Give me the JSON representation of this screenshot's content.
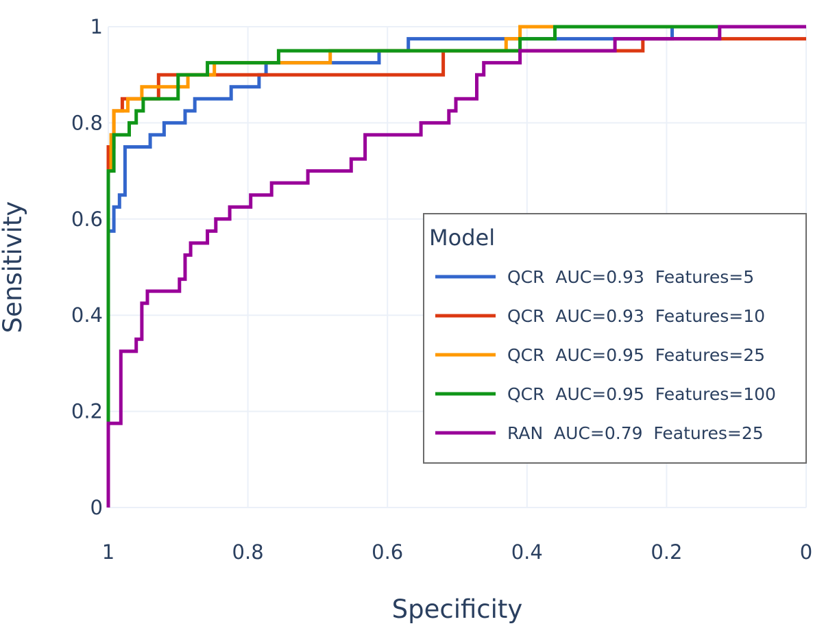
{
  "chart_data": {
    "type": "line",
    "xlabel": "Specificity",
    "ylabel": "Sensitivity",
    "xlim": [
      1,
      0
    ],
    "ylim": [
      0,
      1
    ],
    "x_reversed": true,
    "grid": true,
    "x_ticks": [
      1,
      0.8,
      0.6,
      0.4,
      0.2,
      0
    ],
    "x_tick_labels": [
      "1",
      "0.8",
      "0.6",
      "0.4",
      "0.2",
      "0"
    ],
    "y_ticks": [
      0,
      0.2,
      0.4,
      0.6,
      0.8,
      1
    ],
    "y_tick_labels": [
      "0",
      "0.2",
      "0.4",
      "0.6",
      "0.8",
      "1"
    ],
    "legend": {
      "title": "Model",
      "placement": "center-right"
    },
    "series": [
      {
        "name": "QCR  AUC=0.93  Features=5",
        "color": "#3366cc",
        "x": [
          1,
          1,
          0.992,
          0.992,
          0.984,
          0.984,
          0.976,
          0.976,
          0.968,
          0.968,
          0.94,
          0.94,
          0.92,
          0.92,
          0.89,
          0.89,
          0.876,
          0.876,
          0.824,
          0.824,
          0.784,
          0.784,
          0.774,
          0.774,
          0.612,
          0.612,
          0.57,
          0.57,
          0.192,
          0.192,
          0
        ],
        "y": [
          0,
          0.575,
          0.575,
          0.625,
          0.625,
          0.65,
          0.65,
          0.75,
          0.75,
          0.75,
          0.75,
          0.775,
          0.775,
          0.8,
          0.8,
          0.825,
          0.825,
          0.85,
          0.85,
          0.875,
          0.875,
          0.9,
          0.9,
          0.925,
          0.925,
          0.95,
          0.95,
          0.975,
          0.975,
          1,
          1
        ]
      },
      {
        "name": "QCR  AUC=0.93  Features=10",
        "color": "#dc3912",
        "x": [
          1,
          1,
          0.992,
          0.992,
          0.98,
          0.98,
          0.928,
          0.928,
          0.52,
          0.52,
          0.234,
          0.234,
          0
        ],
        "y": [
          0,
          0.75,
          0.75,
          0.825,
          0.825,
          0.85,
          0.85,
          0.9,
          0.9,
          0.95,
          0.95,
          0.975,
          0.975
        ]
      },
      {
        "name": "QCR  AUC=0.95  Features=25",
        "color": "#ff9900",
        "x": [
          1,
          1,
          0.996,
          0.996,
          0.992,
          0.992,
          0.972,
          0.972,
          0.952,
          0.952,
          0.886,
          0.886,
          0.848,
          0.848,
          0.682,
          0.682,
          0.43,
          0.43,
          0.41,
          0.41,
          0.36
        ],
        "y": [
          0,
          0.7,
          0.7,
          0.775,
          0.775,
          0.825,
          0.825,
          0.85,
          0.85,
          0.875,
          0.875,
          0.9,
          0.9,
          0.925,
          0.925,
          0.95,
          0.95,
          0.975,
          0.975,
          1,
          1
        ]
      },
      {
        "name": "QCR  AUC=0.95  Features=100",
        "color": "#109618",
        "x": [
          1,
          1,
          0.992,
          0.992,
          0.97,
          0.97,
          0.96,
          0.96,
          0.95,
          0.95,
          0.9,
          0.9,
          0.858,
          0.858,
          0.756,
          0.756,
          0.41,
          0.41,
          0.36,
          0.36,
          0.125
        ],
        "y": [
          0,
          0.7,
          0.7,
          0.775,
          0.775,
          0.8,
          0.8,
          0.825,
          0.825,
          0.85,
          0.85,
          0.9,
          0.9,
          0.925,
          0.925,
          0.95,
          0.95,
          0.975,
          0.975,
          1,
          1
        ]
      },
      {
        "name": "RAN  AUC=0.79  Features=25",
        "color": "#990099",
        "x": [
          1,
          1,
          0.982,
          0.982,
          0.96,
          0.96,
          0.952,
          0.952,
          0.944,
          0.944,
          0.932,
          0.932,
          0.898,
          0.898,
          0.89,
          0.89,
          0.882,
          0.882,
          0.87,
          0.87,
          0.858,
          0.858,
          0.846,
          0.846,
          0.826,
          0.826,
          0.796,
          0.796,
          0.766,
          0.766,
          0.714,
          0.714,
          0.652,
          0.652,
          0.632,
          0.632,
          0.552,
          0.552,
          0.512,
          0.512,
          0.502,
          0.502,
          0.472,
          0.472,
          0.462,
          0.462,
          0.41,
          0.41,
          0.274,
          0.274,
          0.124,
          0.124,
          0
        ],
        "y": [
          0,
          0.175,
          0.175,
          0.325,
          0.325,
          0.35,
          0.35,
          0.425,
          0.425,
          0.45,
          0.45,
          0.45,
          0.45,
          0.475,
          0.475,
          0.525,
          0.525,
          0.55,
          0.55,
          0.55,
          0.55,
          0.575,
          0.575,
          0.6,
          0.6,
          0.625,
          0.625,
          0.65,
          0.65,
          0.675,
          0.675,
          0.7,
          0.7,
          0.725,
          0.725,
          0.775,
          0.775,
          0.8,
          0.8,
          0.825,
          0.825,
          0.85,
          0.85,
          0.9,
          0.9,
          0.925,
          0.925,
          0.95,
          0.95,
          0.975,
          0.975,
          1,
          1
        ]
      }
    ]
  }
}
